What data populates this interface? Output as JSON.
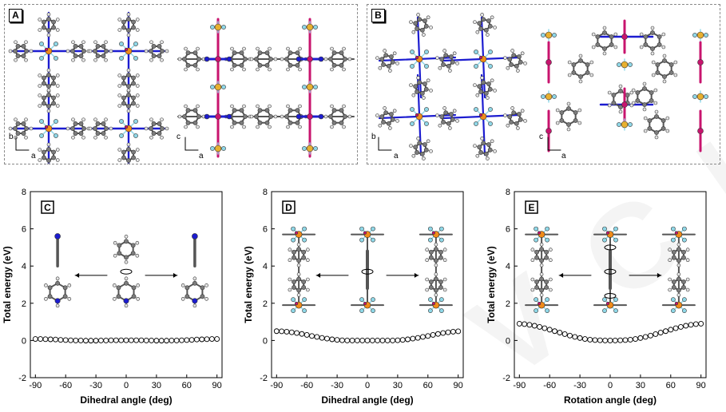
{
  "panels": {
    "A": {
      "label": "A",
      "left_axes": [
        "b",
        "a"
      ],
      "right_axes": [
        "c",
        "a"
      ]
    },
    "B": {
      "label": "B",
      "left_axes": [
        "b",
        "a"
      ],
      "right_axes": [
        "c",
        "a"
      ]
    }
  },
  "watermark": "VCH",
  "colors": {
    "carbon": "#7c7c7c",
    "hydrogen": "#e6e6e6",
    "nitrogen": "#1c1cd0",
    "metal": "#c8146e",
    "center": "#f08c1a",
    "fluorine": "#8fd8e8",
    "sulfur": "#e8b030",
    "bond": "#555555"
  },
  "chart_data": [
    {
      "type": "scatter",
      "panel_label": "C",
      "title": "",
      "xlabel": "Dihedral angle (deg)",
      "ylabel": "Total energy (eV)",
      "xlim": [
        -95,
        95
      ],
      "ylim": [
        -2,
        8
      ],
      "x_ticks": [
        "-90",
        "-60",
        "-30",
        "0",
        "30",
        "60",
        "90"
      ],
      "y_ticks": [
        "-2",
        "0",
        "2",
        "4",
        "6",
        "8"
      ],
      "x_tick_values": [
        -90,
        -60,
        -30,
        0,
        30,
        60,
        90
      ],
      "y_tick_values": [
        -2,
        0,
        2,
        4,
        6,
        8
      ],
      "x_step": 5,
      "x_start": -90,
      "x_end": 90,
      "y_values": [
        0.08,
        0.08,
        0.07,
        0.06,
        0.05,
        0.03,
        0.02,
        0.01,
        0.0,
        0.0,
        -0.01,
        -0.01,
        -0.01,
        0.0,
        0.0,
        0.01,
        0.01,
        0.01,
        0.01,
        0.01,
        0.01,
        0.01,
        0.0,
        0.0,
        -0.01,
        -0.01,
        -0.01,
        0.0,
        0.0,
        0.01,
        0.02,
        0.03,
        0.05,
        0.06,
        0.07,
        0.08,
        0.08
      ]
    },
    {
      "type": "scatter",
      "panel_label": "D",
      "title": "",
      "xlabel": "Dihedral angle (deg)",
      "ylabel": "Total energy (eV)",
      "xlim": [
        -95,
        95
      ],
      "ylim": [
        -2,
        8
      ],
      "x_ticks": [
        "-90",
        "-60",
        "-30",
        "0",
        "30",
        "60",
        "90"
      ],
      "y_ticks": [
        "-2",
        "0",
        "2",
        "4",
        "6",
        "8"
      ],
      "x_tick_values": [
        -90,
        -60,
        -30,
        0,
        30,
        60,
        90
      ],
      "y_tick_values": [
        -2,
        0,
        2,
        4,
        6,
        8
      ],
      "x_step": 5,
      "x_start": -90,
      "x_end": 90,
      "y_values": [
        0.5,
        0.49,
        0.47,
        0.44,
        0.4,
        0.35,
        0.3,
        0.24,
        0.19,
        0.14,
        0.1,
        0.06,
        0.03,
        0.01,
        0.0,
        0.0,
        0.0,
        0.0,
        0.0,
        0.0,
        0.0,
        0.0,
        0.0,
        0.0,
        0.01,
        0.03,
        0.06,
        0.1,
        0.14,
        0.19,
        0.24,
        0.3,
        0.35,
        0.4,
        0.44,
        0.47,
        0.49
      ]
    },
    {
      "type": "scatter",
      "panel_label": "E",
      "title": "",
      "xlabel": "Rotation angle (deg)",
      "ylabel": "Total energy (eV)",
      "xlim": [
        -95,
        95
      ],
      "ylim": [
        -2,
        8
      ],
      "x_ticks": [
        "-90",
        "-60",
        "-30",
        "0",
        "30",
        "60",
        "90"
      ],
      "y_ticks": [
        "-2",
        "0",
        "2",
        "4",
        "6",
        "8"
      ],
      "x_tick_values": [
        -90,
        -60,
        -30,
        0,
        30,
        60,
        90
      ],
      "y_tick_values": [
        -2,
        0,
        2,
        4,
        6,
        8
      ],
      "x_step": 5,
      "x_start": -90,
      "x_end": 90,
      "y_values": [
        0.9,
        0.88,
        0.84,
        0.79,
        0.73,
        0.66,
        0.58,
        0.5,
        0.42,
        0.34,
        0.26,
        0.19,
        0.13,
        0.08,
        0.04,
        0.02,
        0.01,
        0.0,
        0.0,
        0.0,
        0.01,
        0.02,
        0.04,
        0.08,
        0.13,
        0.19,
        0.26,
        0.34,
        0.42,
        0.5,
        0.58,
        0.66,
        0.73,
        0.79,
        0.84,
        0.88,
        0.9
      ]
    }
  ]
}
